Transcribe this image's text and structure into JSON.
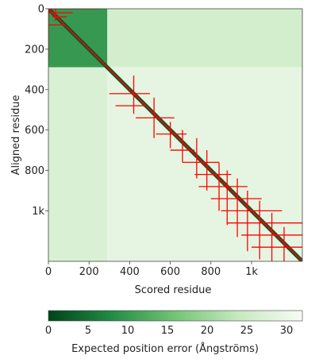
{
  "chart_data": {
    "type": "heatmap",
    "title": "",
    "xlabel": "Scored residue",
    "ylabel": "Aligned residue",
    "n_residues": 1250,
    "x_ticks": [
      {
        "value": 0,
        "label": "0"
      },
      {
        "value": 200,
        "label": "200"
      },
      {
        "value": 400,
        "label": "400"
      },
      {
        "value": 600,
        "label": "600"
      },
      {
        "value": 800,
        "label": "800"
      },
      {
        "value": 1000,
        "label": "1k"
      }
    ],
    "y_ticks": [
      {
        "value": 0,
        "label": "0"
      },
      {
        "value": 200,
        "label": "200"
      },
      {
        "value": 400,
        "label": "400"
      },
      {
        "value": 600,
        "label": "600"
      },
      {
        "value": 800,
        "label": "800"
      },
      {
        "value": 1000,
        "label": "1k"
      }
    ],
    "colorbar": {
      "label": "Expected position error (Ångströms)",
      "range": [
        0,
        32
      ],
      "ticks": [
        0,
        5,
        10,
        15,
        20,
        25,
        30
      ],
      "low_color": "#00441b",
      "high_color": "#f7fcf5"
    },
    "blocks": [
      {
        "x": [
          0,
          290
        ],
        "y": [
          0,
          290
        ],
        "error": 10
      },
      {
        "x": [
          290,
          1250
        ],
        "y": [
          0,
          290
        ],
        "error": 26
      },
      {
        "x": [
          0,
          290
        ],
        "y": [
          290,
          1250
        ],
        "error": 27
      },
      {
        "x": [
          290,
          1250
        ],
        "y": [
          290,
          1250
        ],
        "error": 29
      }
    ],
    "diagonal_error": 2,
    "overlay_color": "#ff0000",
    "overlay_segments": [
      {
        "x": [
          0,
          250
        ],
        "y": [
          0,
          0
        ]
      },
      {
        "x": [
          0,
          0
        ],
        "y": [
          0,
          250
        ]
      },
      {
        "x": [
          0,
          120
        ],
        "y": [
          20,
          20
        ]
      },
      {
        "x": [
          35,
          35
        ],
        "y": [
          0,
          60
        ]
      },
      {
        "x": [
          20,
          90
        ],
        "y": [
          40,
          40
        ]
      },
      {
        "x": [
          0,
          80
        ],
        "y": [
          80,
          80
        ]
      },
      {
        "x": [
          300,
          500
        ],
        "y": [
          420,
          420
        ]
      },
      {
        "x": [
          420,
          420
        ],
        "y": [
          330,
          520
        ]
      },
      {
        "x": [
          330,
          470
        ],
        "y": [
          480,
          480
        ]
      },
      {
        "x": [
          520,
          520
        ],
        "y": [
          440,
          640
        ]
      },
      {
        "x": [
          430,
          620
        ],
        "y": [
          540,
          540
        ]
      },
      {
        "x": [
          600,
          600
        ],
        "y": [
          560,
          690
        ]
      },
      {
        "x": [
          530,
          680
        ],
        "y": [
          620,
          620
        ]
      },
      {
        "x": [
          660,
          660
        ],
        "y": [
          600,
          760
        ]
      },
      {
        "x": [
          600,
          720
        ],
        "y": [
          700,
          700
        ]
      },
      {
        "x": [
          730,
          730
        ],
        "y": [
          640,
          840
        ]
      },
      {
        "x": [
          660,
          840
        ],
        "y": [
          760,
          760
        ]
      },
      {
        "x": [
          780,
          780
        ],
        "y": [
          700,
          900
        ]
      },
      {
        "x": [
          720,
          900
        ],
        "y": [
          820,
          820
        ]
      },
      {
        "x": [
          840,
          840
        ],
        "y": [
          760,
          1000
        ]
      },
      {
        "x": [
          740,
          980
        ],
        "y": [
          880,
          880
        ]
      },
      {
        "x": [
          880,
          880
        ],
        "y": [
          800,
          1070
        ]
      },
      {
        "x": [
          800,
          1050
        ],
        "y": [
          940,
          940
        ]
      },
      {
        "x": [
          930,
          930
        ],
        "y": [
          840,
          1130
        ]
      },
      {
        "x": [
          850,
          1150
        ],
        "y": [
          1000,
          1000
        ]
      },
      {
        "x": [
          980,
          980
        ],
        "y": [
          900,
          1200
        ]
      },
      {
        "x": [
          880,
          1250
        ],
        "y": [
          1060,
          1060
        ]
      },
      {
        "x": [
          1040,
          1040
        ],
        "y": [
          950,
          1240
        ]
      },
      {
        "x": [
          950,
          1250
        ],
        "y": [
          1120,
          1120
        ]
      },
      {
        "x": [
          1100,
          1100
        ],
        "y": [
          1010,
          1250
        ]
      },
      {
        "x": [
          1000,
          1250
        ],
        "y": [
          1180,
          1180
        ]
      },
      {
        "x": [
          1160,
          1160
        ],
        "y": [
          1080,
          1250
        ]
      }
    ]
  }
}
